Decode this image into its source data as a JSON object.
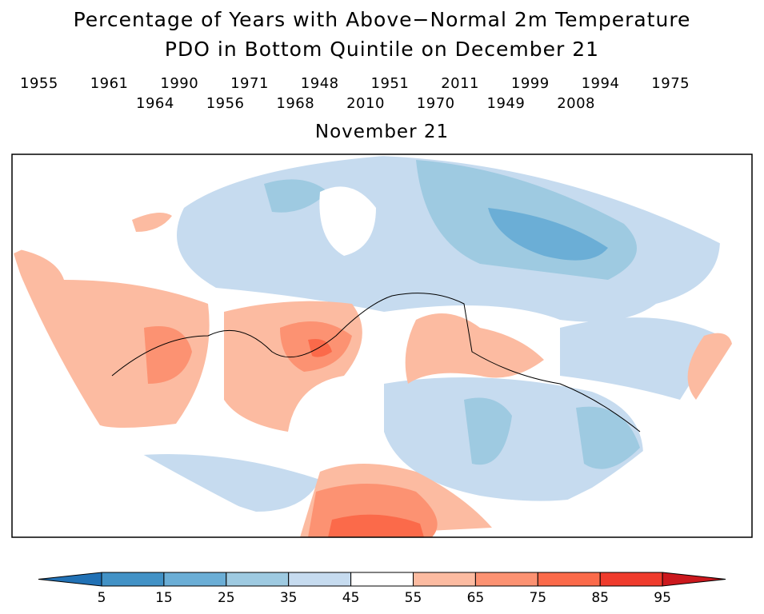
{
  "title_line1": "Percentage of Years with Above−Normal 2m Temperature",
  "title_line2": "PDO in Bottom Quintile on December 21",
  "years_row1": [
    "1955",
    "1961",
    "1990",
    "1971",
    "1948",
    "1951",
    "2011",
    "1999",
    "1994",
    "1975"
  ],
  "years_row2": [
    "1964",
    "1956",
    "1968",
    "2010",
    "1970",
    "1949",
    "2008"
  ],
  "subtitle": "November 21",
  "colorbar": {
    "labels": [
      "5",
      "15",
      "25",
      "35",
      "45",
      "55",
      "65",
      "75",
      "85",
      "95"
    ],
    "colors": [
      "#2171b5",
      "#4292c6",
      "#6baed6",
      "#9ecae1",
      "#c6dbef",
      "#ffffff",
      "#fcbba1",
      "#fc9272",
      "#fb6a4a",
      "#ef3b2c",
      "#cb181d"
    ]
  }
}
